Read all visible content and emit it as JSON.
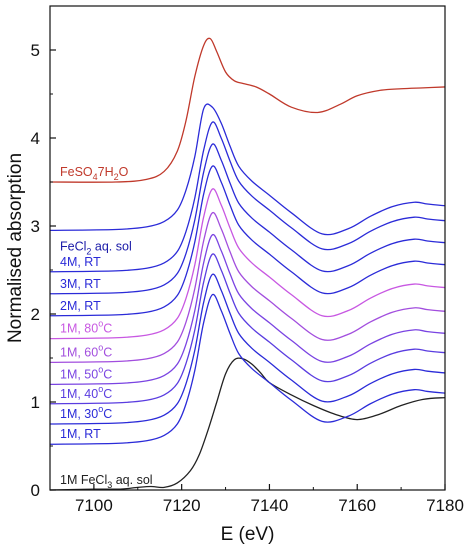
{
  "chart_data": {
    "type": "line",
    "xlabel": "E (eV)",
    "ylabel": "Normalised absorption",
    "xlim": [
      7090,
      7180
    ],
    "ylim": [
      0,
      5.5
    ],
    "xticks": [
      "7100",
      "7120",
      "7140",
      "7160",
      "7180"
    ],
    "yticks": [
      "0",
      "1",
      "2",
      "3",
      "4",
      "5"
    ],
    "grid": false,
    "legend": "none",
    "group_label": {
      "text": "FeCl",
      "sub": "2",
      "tail": " aq. sol",
      "color": "#1a1aa8"
    },
    "series": [
      {
        "name": "1M FeCl3 aq. sol",
        "label_parts": [
          {
            "t": "1M FeCl"
          },
          {
            "t": "3",
            "role": "sub"
          },
          {
            "t": " aq. sol"
          }
        ],
        "color": "#222222",
        "x": [
          7090,
          7100,
          7106,
          7110,
          7113,
          7116,
          7119,
          7122,
          7124,
          7126,
          7128,
          7130,
          7132,
          7134,
          7136,
          7138,
          7140,
          7145,
          7150,
          7155,
          7160,
          7165,
          7170,
          7175,
          7180
        ],
        "y": [
          0.0,
          0.01,
          0.01,
          0.03,
          0.04,
          0.03,
          0.08,
          0.22,
          0.4,
          0.68,
          1.0,
          1.32,
          1.48,
          1.49,
          1.43,
          1.33,
          1.22,
          1.08,
          0.96,
          0.86,
          0.8,
          0.86,
          0.96,
          1.03,
          1.05
        ]
      },
      {
        "name": "1M, RT",
        "label_parts": [
          {
            "t": "1M, RT"
          }
        ],
        "color": "#2b2bd8",
        "x": [
          7090,
          7105,
          7112,
          7116,
          7119,
          7121,
          7123,
          7125,
          7127,
          7129,
          7131,
          7133,
          7136,
          7140,
          7145,
          7152,
          7158,
          7163,
          7168,
          7173,
          7176,
          7180
        ],
        "y": [
          0.52,
          0.53,
          0.56,
          0.62,
          0.75,
          0.98,
          1.36,
          1.9,
          2.22,
          2.04,
          1.78,
          1.55,
          1.38,
          1.22,
          1.02,
          0.78,
          0.84,
          0.98,
          1.09,
          1.14,
          1.12,
          1.1
        ]
      },
      {
        "name": "1M, 30°C",
        "label_parts": [
          {
            "t": "1M, 30"
          },
          {
            "t": "o",
            "role": "sup"
          },
          {
            "t": "C"
          }
        ],
        "color": "#2b2bd8",
        "x": [
          7090,
          7105,
          7112,
          7116,
          7119,
          7121,
          7123,
          7125,
          7127,
          7129,
          7131,
          7133,
          7136,
          7140,
          7145,
          7152,
          7158,
          7163,
          7168,
          7173,
          7176,
          7180
        ],
        "y": [
          0.75,
          0.76,
          0.79,
          0.85,
          0.98,
          1.21,
          1.59,
          2.13,
          2.45,
          2.27,
          2.01,
          1.78,
          1.61,
          1.45,
          1.25,
          1.01,
          1.07,
          1.21,
          1.32,
          1.37,
          1.35,
          1.33
        ]
      },
      {
        "name": "1M, 40°C",
        "label_parts": [
          {
            "t": "1M, 40"
          },
          {
            "t": "o",
            "role": "sup"
          },
          {
            "t": "C"
          }
        ],
        "color": "#5a3de0",
        "x": [
          7090,
          7105,
          7112,
          7116,
          7119,
          7121,
          7123,
          7125,
          7127,
          7129,
          7131,
          7133,
          7136,
          7140,
          7145,
          7152,
          7158,
          7163,
          7168,
          7173,
          7176,
          7180
        ],
        "y": [
          0.98,
          0.99,
          1.02,
          1.08,
          1.21,
          1.44,
          1.82,
          2.36,
          2.68,
          2.5,
          2.24,
          2.01,
          1.84,
          1.68,
          1.48,
          1.24,
          1.3,
          1.44,
          1.55,
          1.6,
          1.58,
          1.56
        ]
      },
      {
        "name": "1M, 50°C",
        "label_parts": [
          {
            "t": "1M, 50"
          },
          {
            "t": "o",
            "role": "sup"
          },
          {
            "t": "C"
          }
        ],
        "color": "#7a44e2",
        "x": [
          7090,
          7105,
          7112,
          7116,
          7119,
          7121,
          7123,
          7125,
          7127,
          7129,
          7131,
          7133,
          7136,
          7140,
          7145,
          7152,
          7158,
          7163,
          7168,
          7173,
          7176,
          7180
        ],
        "y": [
          1.2,
          1.21,
          1.24,
          1.3,
          1.43,
          1.66,
          2.04,
          2.58,
          2.9,
          2.72,
          2.46,
          2.23,
          2.06,
          1.9,
          1.7,
          1.46,
          1.52,
          1.66,
          1.77,
          1.82,
          1.8,
          1.78
        ]
      },
      {
        "name": "1M, 60°C",
        "label_parts": [
          {
            "t": "1M, 60"
          },
          {
            "t": "o",
            "role": "sup"
          },
          {
            "t": "C"
          }
        ],
        "color": "#a24ede",
        "x": [
          7090,
          7105,
          7112,
          7116,
          7119,
          7121,
          7123,
          7125,
          7127,
          7129,
          7131,
          7133,
          7136,
          7140,
          7145,
          7152,
          7158,
          7163,
          7168,
          7173,
          7176,
          7180
        ],
        "y": [
          1.45,
          1.46,
          1.49,
          1.55,
          1.68,
          1.91,
          2.29,
          2.83,
          3.15,
          2.97,
          2.71,
          2.48,
          2.31,
          2.15,
          1.95,
          1.71,
          1.77,
          1.91,
          2.02,
          2.07,
          2.05,
          2.03
        ]
      },
      {
        "name": "1M, 80°C",
        "label_parts": [
          {
            "t": "1M, 80"
          },
          {
            "t": "o",
            "role": "sup"
          },
          {
            "t": "C"
          }
        ],
        "color": "#c858e2",
        "x": [
          7090,
          7105,
          7112,
          7116,
          7119,
          7121,
          7123,
          7125,
          7127,
          7129,
          7131,
          7133,
          7136,
          7140,
          7145,
          7152,
          7158,
          7163,
          7168,
          7173,
          7176,
          7180
        ],
        "y": [
          1.72,
          1.73,
          1.76,
          1.82,
          1.95,
          2.18,
          2.56,
          3.1,
          3.42,
          3.24,
          2.98,
          2.75,
          2.58,
          2.42,
          2.22,
          1.98,
          2.04,
          2.18,
          2.29,
          2.34,
          2.32,
          2.3
        ]
      },
      {
        "name": "2M, RT",
        "label_parts": [
          {
            "t": "2M, RT"
          }
        ],
        "color": "#2b2bd8",
        "x": [
          7090,
          7105,
          7112,
          7116,
          7119,
          7121,
          7123,
          7125,
          7127,
          7129,
          7131,
          7133,
          7136,
          7140,
          7145,
          7152,
          7158,
          7163,
          7168,
          7173,
          7176,
          7180
        ],
        "y": [
          1.98,
          1.99,
          2.02,
          2.08,
          2.21,
          2.44,
          2.82,
          3.36,
          3.68,
          3.5,
          3.24,
          3.01,
          2.84,
          2.68,
          2.48,
          2.24,
          2.3,
          2.44,
          2.55,
          2.6,
          2.58,
          2.56
        ]
      },
      {
        "name": "3M, RT",
        "label_parts": [
          {
            "t": "3M, RT"
          }
        ],
        "color": "#2b2bd8",
        "x": [
          7090,
          7105,
          7112,
          7116,
          7119,
          7121,
          7123,
          7125,
          7127,
          7129,
          7131,
          7133,
          7136,
          7140,
          7145,
          7152,
          7158,
          7163,
          7168,
          7173,
          7176,
          7180
        ],
        "y": [
          2.23,
          2.24,
          2.27,
          2.33,
          2.46,
          2.69,
          3.07,
          3.61,
          3.93,
          3.75,
          3.49,
          3.26,
          3.09,
          2.93,
          2.73,
          2.49,
          2.55,
          2.69,
          2.8,
          2.85,
          2.83,
          2.81
        ]
      },
      {
        "name": "4M, RT",
        "label_parts": [
          {
            "t": "4M, RT"
          }
        ],
        "color": "#2b2bd8",
        "x": [
          7090,
          7105,
          7112,
          7116,
          7119,
          7121,
          7123,
          7125,
          7127,
          7129,
          7131,
          7133,
          7136,
          7140,
          7145,
          7152,
          7158,
          7163,
          7168,
          7173,
          7176,
          7180
        ],
        "y": [
          2.48,
          2.49,
          2.52,
          2.58,
          2.71,
          2.94,
          3.32,
          3.86,
          4.18,
          4.0,
          3.74,
          3.51,
          3.34,
          3.18,
          2.98,
          2.74,
          2.8,
          2.94,
          3.05,
          3.1,
          3.08,
          3.06
        ]
      },
      {
        "name": "FeCl2 aq. sol (top)",
        "label_parts": [],
        "color": "#2b2bd8",
        "x": [
          7090,
          7105,
          7112,
          7116,
          7119,
          7121,
          7123,
          7125,
          7127,
          7129,
          7131,
          7133,
          7136,
          7140,
          7145,
          7152,
          7158,
          7163,
          7168,
          7173,
          7176,
          7180
        ],
        "y": [
          2.95,
          2.96,
          2.99,
          3.05,
          3.18,
          3.41,
          3.79,
          4.33,
          4.35,
          4.17,
          3.91,
          3.68,
          3.51,
          3.35,
          3.15,
          2.91,
          2.97,
          3.11,
          3.22,
          3.27,
          3.25,
          3.23
        ]
      },
      {
        "name": "FeSO4 7H2O",
        "label_parts": [
          {
            "t": "FeSO"
          },
          {
            "t": "4",
            "role": "sub"
          },
          {
            "t": "7H"
          },
          {
            "t": "2",
            "role": "sub"
          },
          {
            "t": "O"
          }
        ],
        "color": "#c0392b",
        "x": [
          7090,
          7105,
          7112,
          7116,
          7119,
          7121,
          7123,
          7125,
          7126.5,
          7128,
          7130,
          7132,
          7134,
          7137,
          7140,
          7145,
          7151,
          7156,
          7160,
          7165,
          7170,
          7175,
          7180
        ],
        "y": [
          3.5,
          3.5,
          3.53,
          3.62,
          3.85,
          4.2,
          4.7,
          5.05,
          5.13,
          4.98,
          4.75,
          4.65,
          4.62,
          4.58,
          4.5,
          4.35,
          4.29,
          4.38,
          4.48,
          4.54,
          4.56,
          4.57,
          4.58
        ]
      }
    ]
  }
}
